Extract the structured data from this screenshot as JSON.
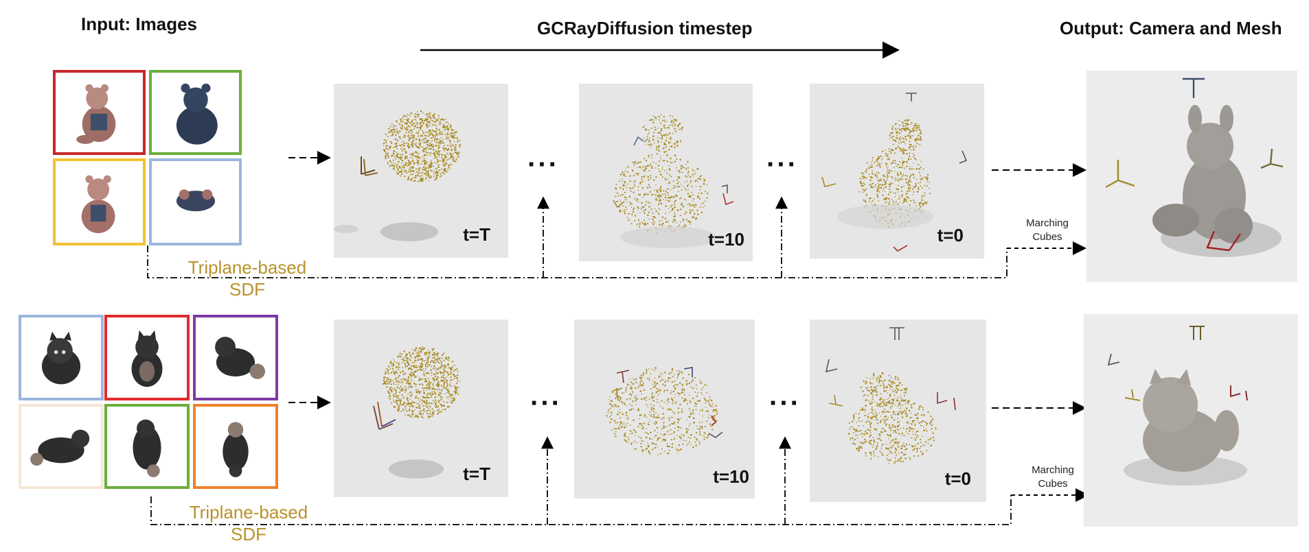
{
  "headers": {
    "input": "Input: Images",
    "timestep": "GCRayDiffusion timestep",
    "output": "Output: Camera and Mesh"
  },
  "rows": [
    {
      "thumb_colors": [
        "#c8262b",
        "#6bae3c",
        "#f1c232",
        "#9bb6de"
      ],
      "stages": [
        {
          "t_label": "t=T"
        },
        {
          "t_label": "t=10"
        },
        {
          "t_label": "t=0"
        }
      ],
      "ellipsis": "···",
      "sdf_line1": "Triplane-based",
      "sdf_line2": "SDF",
      "mc_line1": "Marching",
      "mc_line2": "Cubes"
    },
    {
      "thumb_colors": [
        "#9bb6de",
        "#e02b2b",
        "#7e3aa8",
        "#f6e6d6",
        "#6bae3c",
        "#f0812a"
      ],
      "stages": [
        {
          "t_label": "t=T"
        },
        {
          "t_label": "t=10"
        },
        {
          "t_label": "t=0"
        }
      ],
      "ellipsis": "···",
      "sdf_line1": "Triplane-based",
      "sdf_line2": "SDF",
      "mc_line1": "Marching",
      "mc_line2": "Cubes"
    }
  ],
  "colors": {
    "sdf_text": "#b8922a",
    "points": "#a88a1e",
    "panel_bg": "#e6e6e6"
  }
}
